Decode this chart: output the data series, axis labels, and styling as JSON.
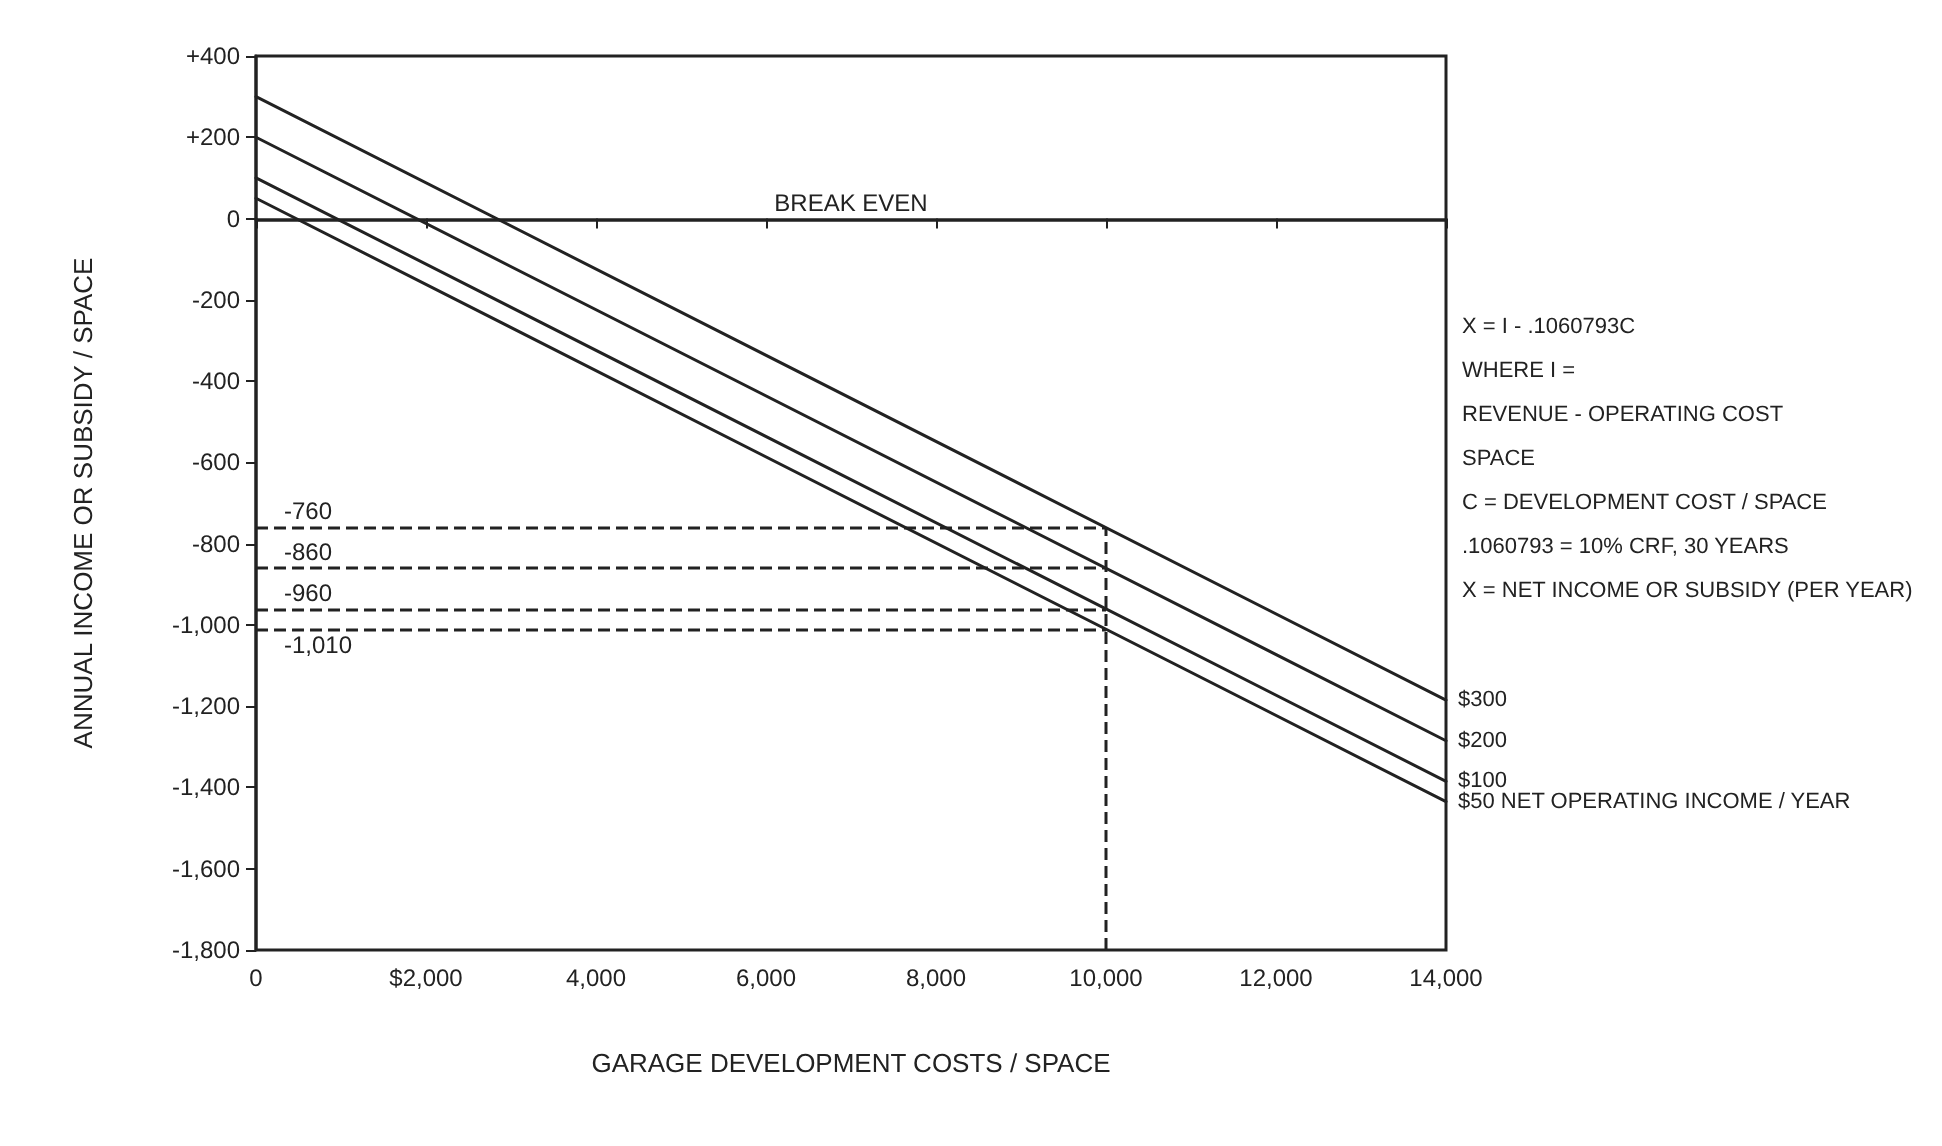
{
  "chart_data": {
    "type": "line",
    "xlabel": "GARAGE DEVELOPMENT COSTS / SPACE",
    "ylabel": "ANNUAL INCOME OR SUBSIDY / SPACE",
    "x": [
      0,
      14000
    ],
    "series": [
      {
        "name": "$50 NET OPERATING INCOME / YEAR",
        "color": "#222222",
        "values": [
          50,
          -1435
        ]
      },
      {
        "name": "$100",
        "color": "#222222",
        "values": [
          100,
          -1385
        ]
      },
      {
        "name": "$200",
        "color": "#222222",
        "values": [
          200,
          -1285
        ]
      },
      {
        "name": "$300",
        "color": "#222222",
        "values": [
          300,
          -1185
        ]
      }
    ],
    "xlim": [
      0,
      14000
    ],
    "ylim": [
      -1800,
      400
    ],
    "xticks": [
      0,
      {
        "value": 2000,
        "label": "$2,000"
      },
      {
        "value": 4000,
        "label": "4,000"
      },
      {
        "value": 6000,
        "label": "6,000"
      },
      {
        "value": 8000,
        "label": "8,000"
      },
      {
        "value": 10000,
        "label": "10,000"
      },
      {
        "value": 12000,
        "label": "12,000"
      },
      {
        "value": 14000,
        "label": "14,000"
      }
    ],
    "yticks": [
      {
        "value": 400,
        "label": "+400"
      },
      {
        "value": 200,
        "label": "+200"
      },
      0,
      -200,
      -400,
      -600,
      -800,
      {
        "value": -1000,
        "label": "-1,000"
      },
      {
        "value": -1200,
        "label": "-1,200"
      },
      {
        "value": -1400,
        "label": "-1,400"
      },
      {
        "value": -1600,
        "label": "-1,600"
      },
      {
        "value": -1800,
        "label": "-1,800"
      }
    ],
    "ref_lines": [
      {
        "axis": "y",
        "value": 0,
        "label": "BREAK EVEN",
        "color": "#222222",
        "line_style": "solid"
      },
      {
        "axis": "y",
        "value": -760,
        "label": "-760",
        "color": "#222222",
        "line_style": "dashed"
      },
      {
        "axis": "y",
        "value": -860,
        "label": "-860",
        "color": "#222222",
        "line_style": "dashed"
      },
      {
        "axis": "y",
        "value": -960,
        "label": "-960",
        "color": "#222222",
        "line_style": "dashed"
      },
      {
        "axis": "y",
        "value": -1010,
        "label": "-1,010",
        "color": "#222222",
        "line_style": "dashed"
      },
      {
        "axis": "x",
        "value": 10000,
        "color": "#222222",
        "line_style": "dashed"
      }
    ],
    "annotations": [
      "X = I - .1060793C",
      "WHERE I =",
      "REVENUE - OPERATING COST",
      "SPACE",
      "C = DEVELOPMENT COST / SPACE",
      ".1060793 = 10% CRF, 30 YEARS",
      "X = NET INCOME OR SUBSIDY (PER YEAR)"
    ],
    "grid": false,
    "legend": false,
    "marker": "none",
    "line_style": "solid"
  }
}
